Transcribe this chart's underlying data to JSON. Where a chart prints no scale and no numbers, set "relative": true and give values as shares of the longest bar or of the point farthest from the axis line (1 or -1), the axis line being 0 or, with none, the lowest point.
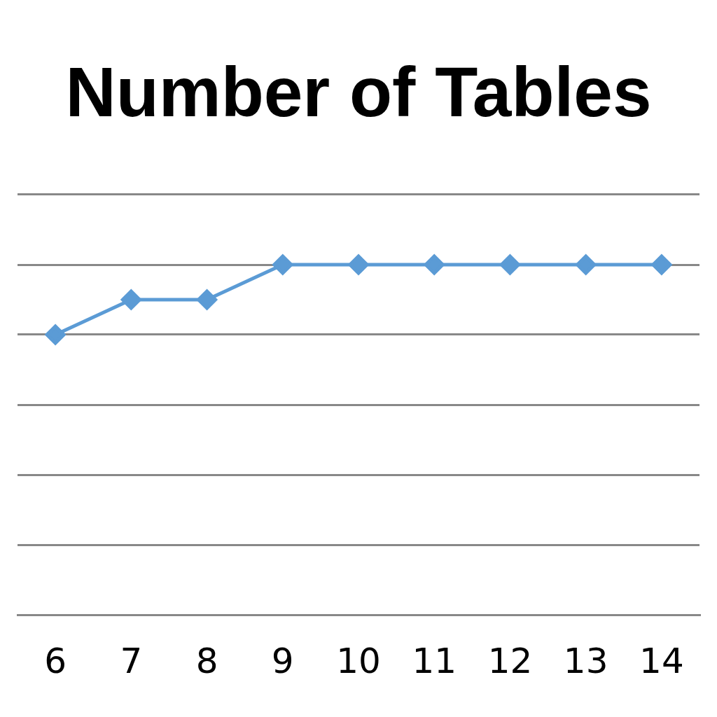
{
  "chart_data": {
    "type": "line",
    "title": "Number of Tables",
    "categories": [
      "6",
      "7",
      "8",
      "9",
      "10",
      "11",
      "12",
      "13",
      "14"
    ],
    "series": [
      {
        "color": "#5b9bd5",
        "values": [
          0.8,
          0.9,
          0.9,
          1,
          1,
          1,
          1,
          1,
          1
        ]
      }
    ],
    "relative": true,
    "grid": "y",
    "legend": false,
    "marker": "diamond",
    "line_style": "solid"
  }
}
